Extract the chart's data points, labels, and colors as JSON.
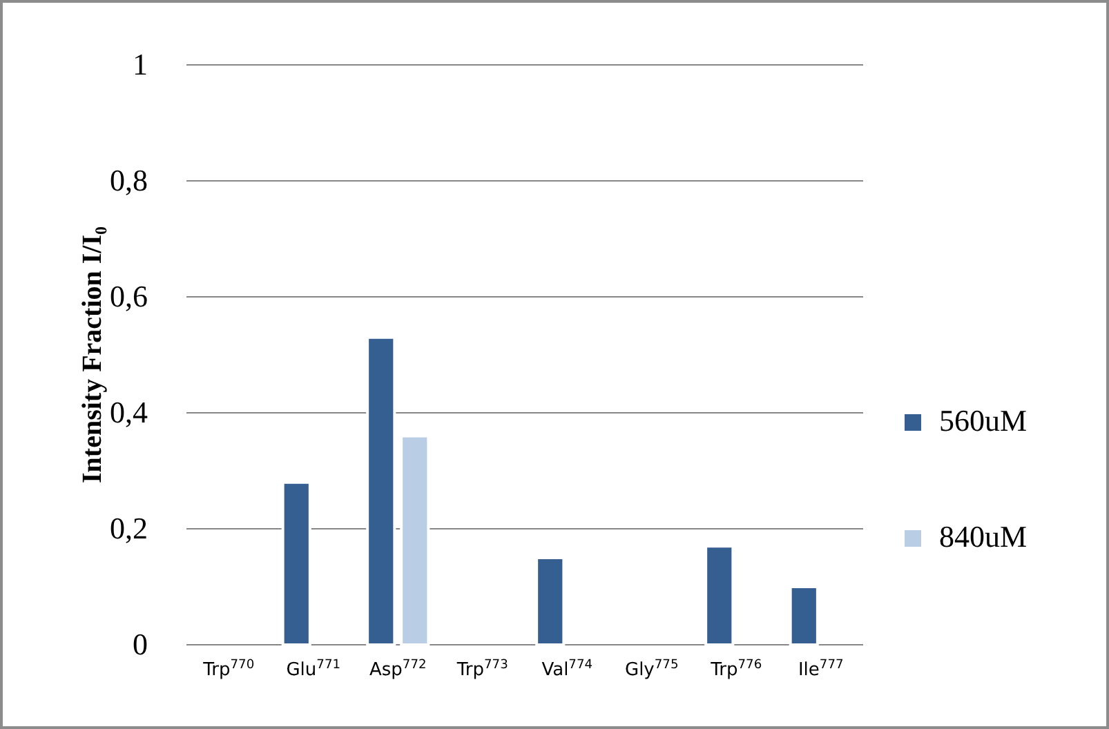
{
  "chart_data": {
    "type": "bar",
    "ylabel": "Intensity Fraction I/I₀",
    "categories": [
      "Trp$^{770}$",
      "Glu$^{771}$",
      "Asp$^{772}$",
      "Trp$^{773}$",
      "Val$^{774}$",
      "Gly$^{775}$",
      "Trp$^{776}$",
      "Ile$^{777}$"
    ],
    "series": [
      {
        "name": "560uM",
        "color": "#365f91",
        "values": [
          null,
          0.28,
          0.53,
          null,
          0.15,
          null,
          0.17,
          0.1
        ]
      },
      {
        "name": "840uM",
        "color": "#b9cde5",
        "values": [
          null,
          null,
          0.36,
          null,
          null,
          null,
          null,
          null
        ]
      }
    ],
    "ylim": [
      0,
      1
    ],
    "yticks": [
      0,
      {
        "value": 0.2,
        "label": "0,2"
      },
      {
        "value": 0.4,
        "label": "0,4"
      },
      {
        "value": 0.6,
        "label": "0,6"
      },
      {
        "value": 0.8,
        "label": "0,8"
      },
      1
    ],
    "grid": "y",
    "legend": "right"
  }
}
